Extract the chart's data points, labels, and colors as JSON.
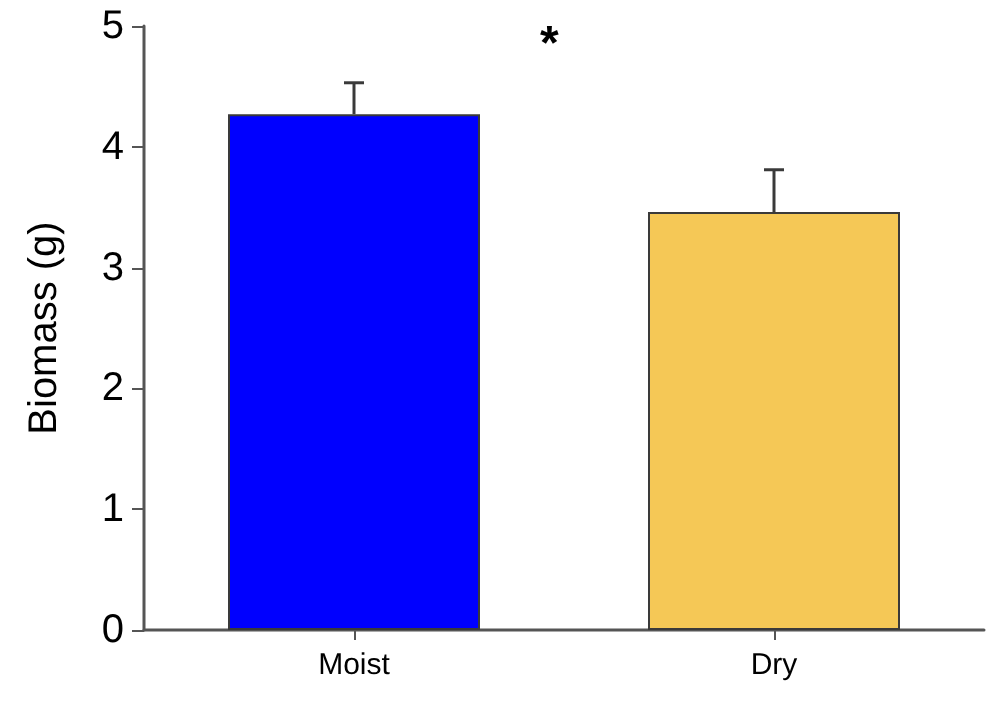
{
  "chart_data": {
    "type": "bar",
    "ylabel": "Biomass (g)",
    "categories": [
      "Moist",
      "Dry"
    ],
    "values": [
      4.27,
      3.46
    ],
    "colors": [
      "#0000ff",
      "#f5c856"
    ],
    "errors": [
      [
        4.27,
        4.53
      ],
      [
        3.46,
        3.81
      ]
    ],
    "ylim": [
      0,
      5
    ],
    "yticks": [
      0,
      1,
      2,
      3,
      4,
      5
    ],
    "grid": false,
    "annotations": [
      "*"
    ]
  }
}
